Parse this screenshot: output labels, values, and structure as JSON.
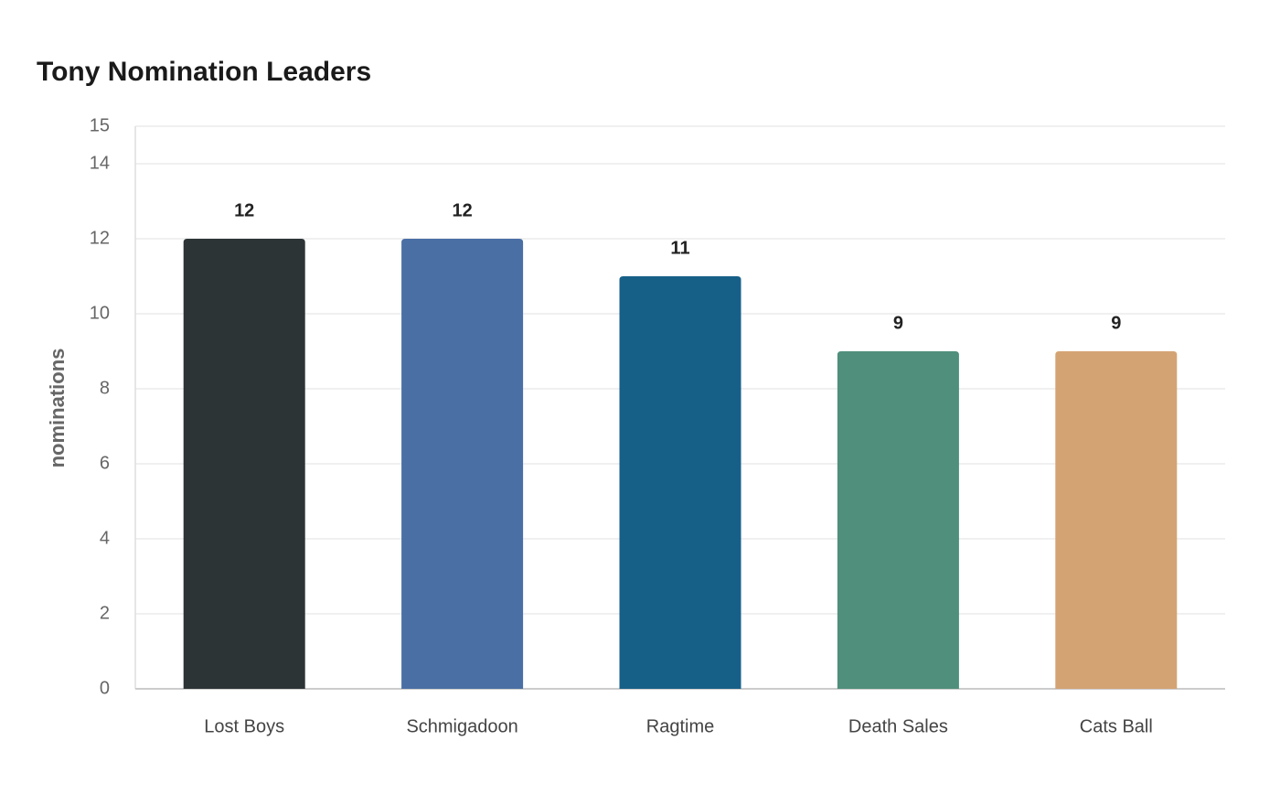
{
  "chart_data": {
    "type": "bar",
    "title": "Tony Nomination Leaders",
    "y_label": "nominations",
    "categories": [
      "Lost Boys",
      "Schmigadoon",
      "Ragtime",
      "Death Sales",
      "Cats Ball"
    ],
    "values": [
      12,
      12,
      11,
      9,
      9
    ],
    "colors": [
      "#2d3436",
      "#4a6fa5",
      "#166088",
      "#4f8f7c",
      "#d4a373"
    ],
    "ylim": [
      0,
      15
    ],
    "yticks": [
      0,
      2,
      4,
      6,
      8,
      10,
      12,
      14,
      15
    ],
    "grid": true
  }
}
